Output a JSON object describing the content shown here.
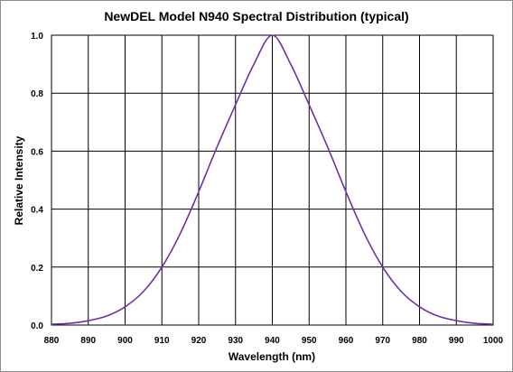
{
  "chart_data": {
    "type": "line",
    "title": "NewDEL Model N940 Spectral Distribution (typical)",
    "xlabel": "Wavelength (nm)",
    "ylabel": "Relative Intensity",
    "xlim": [
      880,
      1000
    ],
    "ylim": [
      0.0,
      1.0
    ],
    "xticks": [
      "880",
      "890",
      "900",
      "910",
      "920",
      "930",
      "940",
      "950",
      "960",
      "970",
      "980",
      "990",
      "1000"
    ],
    "yticks": [
      "0.0",
      "0.2",
      "0.4",
      "0.6",
      "0.8",
      "1.0"
    ],
    "grid": true,
    "legend": "none",
    "series": [
      {
        "color": "#7030a0",
        "x": [
          880,
          885,
          890,
          895,
          900,
          905,
          910,
          915,
          920,
          925,
          930,
          935,
          940,
          945,
          950,
          955,
          960,
          965,
          970,
          975,
          980,
          985,
          990,
          995,
          1000
        ],
        "y": [
          0.003,
          0.006,
          0.015,
          0.031,
          0.063,
          0.116,
          0.2,
          0.316,
          0.46,
          0.615,
          0.76,
          0.9,
          1.0,
          0.9,
          0.76,
          0.615,
          0.46,
          0.316,
          0.2,
          0.116,
          0.063,
          0.031,
          0.015,
          0.006,
          0.003
        ]
      }
    ]
  }
}
